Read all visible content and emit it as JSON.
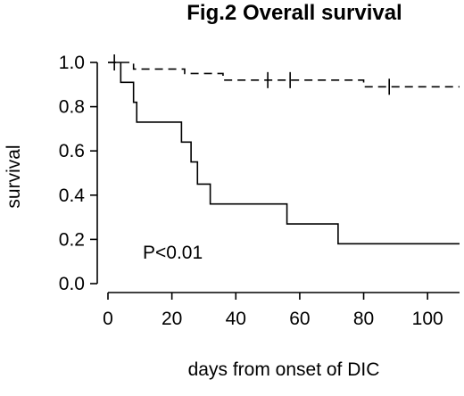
{
  "chart_data": {
    "type": "line",
    "title": "Fig.2 Overall survival",
    "xlabel": "days from onset of DIC",
    "ylabel": "survival",
    "xlim": [
      0,
      110
    ],
    "ylim": [
      0,
      1.0
    ],
    "xticks": [
      0,
      20,
      40,
      60,
      80,
      100
    ],
    "xtick_labels": [
      "0",
      "20",
      "40",
      "60",
      "80",
      "100"
    ],
    "yticks": [
      0.0,
      0.2,
      0.4,
      0.6,
      0.8,
      1.0
    ],
    "ytick_labels": [
      "0.0",
      "0.2",
      "0.4",
      "0.6",
      "0.8",
      "1.0"
    ],
    "grid": false,
    "annotation": "P<0.01",
    "series": [
      {
        "line_style": "dashed",
        "step": true,
        "points": [
          [
            0,
            1.0
          ],
          [
            8,
            0.97
          ],
          [
            24,
            0.95
          ],
          [
            36,
            0.92
          ],
          [
            80,
            0.89
          ],
          [
            110,
            0.89
          ]
        ],
        "censor_marks": [
          [
            50,
            0.92
          ],
          [
            57,
            0.92
          ],
          [
            88,
            0.89
          ]
        ]
      },
      {
        "line_style": "solid",
        "step": true,
        "points": [
          [
            0,
            1.0
          ],
          [
            4,
            0.91
          ],
          [
            8,
            0.82
          ],
          [
            9,
            0.73
          ],
          [
            23,
            0.64
          ],
          [
            26,
            0.55
          ],
          [
            28,
            0.45
          ],
          [
            32,
            0.36
          ],
          [
            56,
            0.27
          ],
          [
            72,
            0.18
          ],
          [
            110,
            0.18
          ]
        ],
        "censor_marks": [
          [
            2,
            1.0
          ]
        ]
      }
    ]
  }
}
